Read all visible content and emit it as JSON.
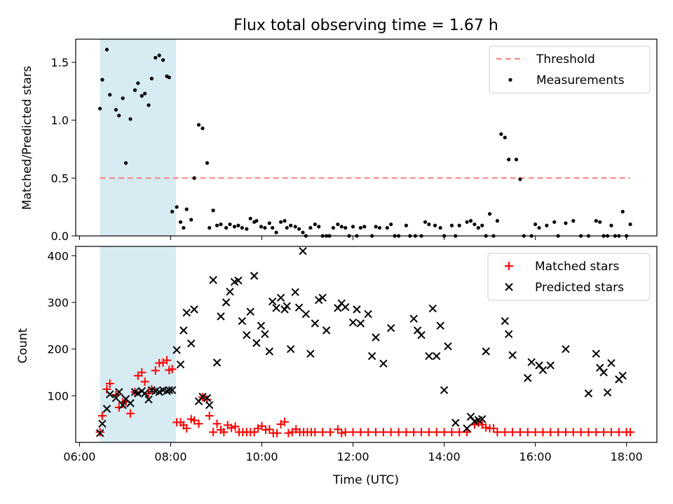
{
  "figure": {
    "title": "Flux total observing time = 1.67 h",
    "shaded_span": {
      "start": "06:27",
      "end": "08:07",
      "color": "#add8e6"
    }
  },
  "chart_data": [
    {
      "type": "scatter",
      "ylabel": "Matched/Predicted stars",
      "xlabel": "",
      "xlim": [
        "05:55",
        "18:40"
      ],
      "ylim": [
        0,
        1.7
      ],
      "yticks": [
        "0.0",
        "0.5",
        "1.0",
        "1.5"
      ],
      "legend": {
        "placement": "top-right",
        "entries": [
          "Threshold",
          "Measurements"
        ]
      },
      "threshold": {
        "name": "Threshold",
        "value": 0.5,
        "x_range": [
          "06:27",
          "18:05"
        ],
        "color": "#ff7f7f",
        "style": "dashed"
      },
      "series": [
        {
          "name": "Measurements",
          "color": "#000000",
          "x": [
            "06:27",
            "06:30",
            "06:36",
            "06:40",
            "06:48",
            "06:52",
            "06:57",
            "07:01",
            "07:07",
            "07:13",
            "07:17",
            "07:22",
            "07:26",
            "07:31",
            "07:35",
            "07:40",
            "07:45",
            "07:50",
            "07:55",
            "07:58",
            "08:02",
            "08:08",
            "08:13",
            "08:17",
            "08:21",
            "08:27",
            "08:31",
            "08:37",
            "08:42",
            "08:48",
            "08:51",
            "08:56",
            "09:01",
            "09:06",
            "09:13",
            "09:18",
            "09:24",
            "09:29",
            "09:34",
            "09:40",
            "09:45",
            "09:50",
            "09:53",
            "09:59",
            "10:04",
            "10:10",
            "10:14",
            "10:19",
            "10:25",
            "10:30",
            "10:33",
            "10:38",
            "10:44",
            "10:49",
            "10:54",
            "10:58",
            "11:04",
            "11:10",
            "11:15",
            "11:20",
            "11:25",
            "11:29",
            "11:34",
            "11:40",
            "11:45",
            "11:50",
            "11:55",
            "12:00",
            "12:05",
            "12:10",
            "12:15",
            "12:25",
            "12:30",
            "12:35",
            "12:45",
            "12:50",
            "12:55",
            "13:00",
            "13:10",
            "13:15",
            "13:22",
            "13:30",
            "13:35",
            "13:40",
            "13:48",
            "13:55",
            "14:00",
            "14:10",
            "14:15",
            "14:20",
            "14:30",
            "14:35",
            "14:40",
            "14:45",
            "14:50",
            "14:55",
            "15:00",
            "15:05",
            "15:10",
            "15:15",
            "15:20",
            "15:25",
            "15:35",
            "15:40",
            "15:45",
            "15:55",
            "16:00",
            "16:05",
            "16:15",
            "16:25",
            "16:30",
            "16:40",
            "16:50",
            "17:00",
            "17:10",
            "17:20",
            "17:25",
            "17:30",
            "17:35",
            "17:40",
            "17:45",
            "17:50",
            "17:55",
            "18:00",
            "18:05"
          ],
          "y": [
            1.1,
            1.35,
            1.61,
            1.22,
            1.09,
            1.04,
            1.19,
            0.63,
            1.01,
            1.26,
            1.32,
            1.21,
            1.23,
            1.13,
            1.36,
            1.54,
            1.56,
            1.52,
            1.38,
            1.37,
            0.21,
            0.25,
            0.12,
            0.07,
            0.23,
            0.14,
            0.5,
            0.96,
            0.93,
            0.63,
            0.07,
            0.22,
            0.09,
            0.1,
            0.07,
            0.1,
            0.08,
            0.09,
            0.07,
            0.06,
            0.15,
            0.12,
            0.13,
            0.08,
            0.07,
            0.11,
            0.07,
            0.03,
            0.12,
            0.13,
            0.07,
            0.09,
            0.08,
            0.06,
            0.03,
            0.0,
            0.07,
            0.1,
            0.08,
            0.0,
            0.0,
            0.0,
            0.07,
            0.1,
            0.08,
            0.07,
            0.0,
            0.08,
            0.0,
            0.07,
            0.08,
            0.0,
            0.08,
            0.07,
            0.07,
            0.1,
            0.0,
            0.0,
            0.09,
            0.0,
            0.0,
            0.0,
            0.12,
            0.1,
            0.09,
            0.07,
            0.0,
            0.09,
            0.0,
            0.09,
            0.12,
            0.13,
            0.1,
            0.07,
            0.09,
            0.0,
            0.19,
            0.0,
            0.13,
            0.88,
            0.85,
            0.66,
            0.66,
            0.49,
            0.0,
            0.0,
            0.1,
            0.07,
            0.09,
            0.12,
            0.0,
            0.11,
            0.13,
            0.0,
            0.0,
            0.13,
            0.12,
            0.0,
            0.0,
            0.09,
            0.0,
            0.0,
            0.21,
            0.0,
            0.1
          ],
          "marker": "dot"
        }
      ]
    },
    {
      "type": "scatter",
      "ylabel": "Count",
      "xlabel": "Time (UTC)",
      "xlim": [
        "05:55",
        "18:40"
      ],
      "ylim": [
        0,
        420
      ],
      "yticks": [
        "100",
        "200",
        "300",
        "400"
      ],
      "xticks": [
        "06:00",
        "08:00",
        "10:00",
        "12:00",
        "14:00",
        "16:00",
        "18:00"
      ],
      "legend": {
        "placement": "top-right",
        "entries": [
          "Matched stars",
          "Predicted stars"
        ]
      },
      "series": [
        {
          "name": "Matched stars",
          "color": "#ff0000",
          "marker": "plus",
          "x": [
            "06:27",
            "06:30",
            "06:36",
            "06:40",
            "06:48",
            "06:52",
            "06:57",
            "07:01",
            "07:07",
            "07:13",
            "07:17",
            "07:22",
            "07:26",
            "07:31",
            "07:35",
            "07:40",
            "07:45",
            "07:50",
            "07:55",
            "07:58",
            "08:02",
            "08:08",
            "08:13",
            "08:17",
            "08:21",
            "08:27",
            "08:31",
            "08:37",
            "08:42",
            "08:48",
            "08:51",
            "08:56",
            "09:01",
            "09:06",
            "09:10",
            "09:15",
            "09:20",
            "09:25",
            "09:30",
            "09:35",
            "09:40",
            "09:45",
            "09:50",
            "09:55",
            "10:00",
            "10:05",
            "10:10",
            "10:15",
            "10:20",
            "10:25",
            "10:30",
            "10:35",
            "10:40",
            "10:45",
            "10:50",
            "10:55",
            "11:00",
            "11:05",
            "11:10",
            "11:20",
            "11:30",
            "11:40",
            "11:45",
            "11:50",
            "12:00",
            "12:10",
            "12:20",
            "12:30",
            "12:40",
            "12:50",
            "13:00",
            "13:10",
            "13:20",
            "13:30",
            "13:40",
            "13:50",
            "14:00",
            "14:10",
            "14:20",
            "14:30",
            "14:40",
            "14:45",
            "14:50",
            "14:55",
            "15:00",
            "15:05",
            "15:10",
            "15:20",
            "15:30",
            "15:40",
            "15:50",
            "16:00",
            "16:10",
            "16:20",
            "16:30",
            "16:40",
            "16:50",
            "17:00",
            "17:10",
            "17:20",
            "17:30",
            "17:40",
            "17:50",
            "18:00",
            "18:05"
          ],
          "y": [
            22,
            57,
            114,
            126,
            102,
            75,
            86,
            87,
            62,
            108,
            143,
            150,
            130,
            105,
            114,
            154,
            170,
            171,
            176,
            155,
            157,
            43,
            43,
            37,
            30,
            50,
            47,
            40,
            97,
            92,
            57,
            22,
            40,
            27,
            22,
            37,
            31,
            34,
            22,
            22,
            22,
            22,
            22,
            30,
            35,
            27,
            28,
            20,
            20,
            39,
            44,
            20,
            22,
            28,
            22,
            22,
            22,
            22,
            22,
            22,
            22,
            28,
            20,
            22,
            22,
            22,
            22,
            22,
            22,
            22,
            22,
            22,
            22,
            22,
            22,
            22,
            22,
            22,
            22,
            22,
            38,
            42,
            38,
            32,
            30,
            30,
            22,
            22,
            22,
            22,
            22,
            22,
            22,
            22,
            22,
            22,
            22,
            22,
            22,
            22,
            22,
            22,
            22,
            22,
            22
          ]
        },
        {
          "name": "Predicted stars",
          "color": "#000000",
          "marker": "x",
          "x": [
            "06:27",
            "06:30",
            "06:36",
            "06:40",
            "06:48",
            "06:52",
            "06:57",
            "07:01",
            "07:07",
            "07:13",
            "07:17",
            "07:22",
            "07:26",
            "07:31",
            "07:35",
            "07:40",
            "07:45",
            "07:50",
            "07:55",
            "07:58",
            "08:02",
            "08:08",
            "08:13",
            "08:17",
            "08:21",
            "08:27",
            "08:31",
            "08:37",
            "08:42",
            "08:48",
            "08:51",
            "08:56",
            "09:01",
            "09:06",
            "09:13",
            "09:18",
            "09:24",
            "09:29",
            "09:34",
            "09:40",
            "09:45",
            "09:50",
            "09:53",
            "09:59",
            "10:04",
            "10:10",
            "10:14",
            "10:19",
            "10:25",
            "10:30",
            "10:33",
            "10:38",
            "10:44",
            "10:49",
            "10:54",
            "10:58",
            "11:04",
            "11:10",
            "11:15",
            "11:20",
            "11:25",
            "11:40",
            "11:45",
            "11:50",
            "12:00",
            "12:05",
            "12:10",
            "12:20",
            "12:25",
            "12:30",
            "12:40",
            "12:50",
            "13:20",
            "13:25",
            "13:30",
            "13:40",
            "13:45",
            "13:50",
            "13:55",
            "14:00",
            "14:05",
            "14:15",
            "14:30",
            "14:35",
            "14:40",
            "14:45",
            "14:50",
            "14:55",
            "15:20",
            "15:25",
            "15:30",
            "15:50",
            "15:55",
            "16:05",
            "16:10",
            "16:20",
            "16:40",
            "17:10",
            "17:20",
            "17:25",
            "17:30",
            "17:35",
            "17:40",
            "17:50",
            "17:55"
          ],
          "y": [
            20,
            40,
            72,
            103,
            95,
            108,
            80,
            93,
            84,
            108,
            105,
            110,
            105,
            92,
            112,
            110,
            108,
            112,
            110,
            112,
            112,
            198,
            167,
            240,
            278,
            212,
            285,
            88,
            98,
            95,
            80,
            348,
            171,
            270,
            300,
            323,
            344,
            347,
            260,
            230,
            280,
            357,
            213,
            250,
            232,
            195,
            302,
            288,
            310,
            285,
            292,
            200,
            322,
            289,
            410,
            275,
            190,
            255,
            305,
            310,
            240,
            288,
            298,
            290,
            257,
            285,
            255,
            275,
            185,
            225,
            169,
            245,
            265,
            240,
            230,
            185,
            287,
            185,
            250,
            112,
            206,
            42,
            30,
            55,
            45,
            48,
            50,
            195,
            260,
            232,
            187,
            138,
            172,
            165,
            155,
            165,
            200,
            105,
            190,
            160,
            150,
            107,
            170,
            135,
            143
          ]
        }
      ]
    }
  ]
}
